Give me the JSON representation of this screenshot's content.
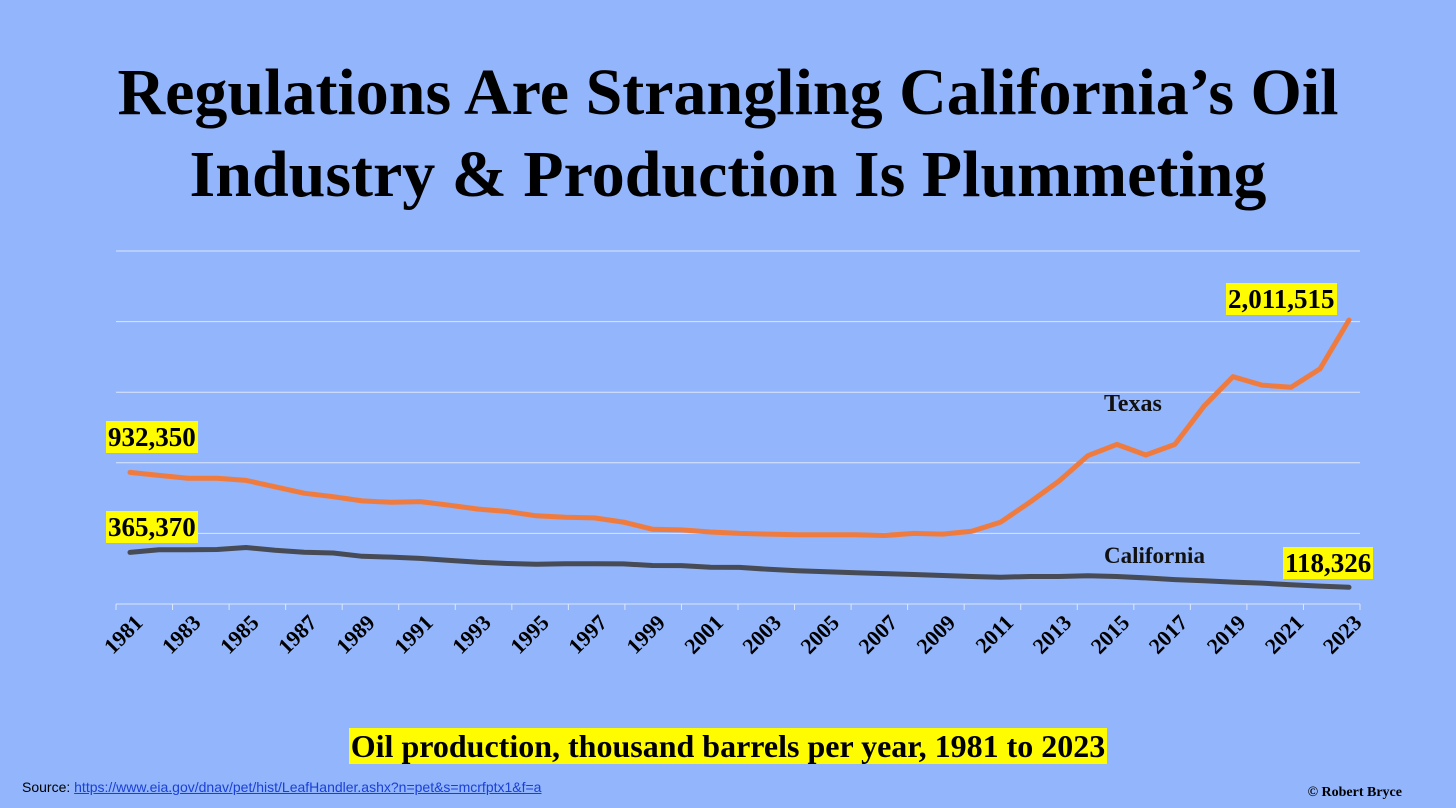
{
  "title_lines": [
    "Regulations Are Strangling California’s Oil",
    "Industry & Production Is Plummeting"
  ],
  "subtitle": "Oil production, thousand barrels per year, 1981 to 2023",
  "source": {
    "label": "Source:",
    "link_text": "https://www.eia.gov/dnav/pet/hist/LeafHandler.ashx?n=pet&s=mcrfptx1&f=a"
  },
  "credit": "© Robert Bryce",
  "colors": {
    "background": "#92b5fb",
    "texas": "#ef7c3e",
    "california": "#474b55",
    "highlight": "#fffb00",
    "grid": "#dce7fd"
  },
  "chart_data": {
    "type": "line",
    "title": "Regulations Are Strangling California’s Oil Industry & Production Is Plummeting",
    "xlabel": "Oil production, thousand barrels per year, 1981 to 2023",
    "ylabel": "",
    "x_tick_labels": [
      "1981",
      "1983",
      "1985",
      "1987",
      "1989",
      "1991",
      "1993",
      "1995",
      "1997",
      "1999",
      "2001",
      "2003",
      "2005",
      "2007",
      "2009",
      "2011",
      "2013",
      "2015",
      "2017",
      "2019",
      "2021",
      "2023"
    ],
    "x": [
      1981,
      1982,
      1983,
      1984,
      1985,
      1986,
      1987,
      1988,
      1989,
      1990,
      1991,
      1992,
      1993,
      1994,
      1995,
      1996,
      1997,
      1998,
      1999,
      2000,
      2001,
      2002,
      2003,
      2004,
      2005,
      2006,
      2007,
      2008,
      2009,
      2010,
      2011,
      2012,
      2013,
      2014,
      2015,
      2016,
      2017,
      2018,
      2019,
      2020,
      2021,
      2022,
      2023
    ],
    "ylim": [
      0,
      2500000
    ],
    "grid": true,
    "series": [
      {
        "name": "Texas",
        "values": [
          932350,
          911000,
          890000,
          890000,
          875000,
          830000,
          785000,
          760000,
          730000,
          720000,
          725000,
          700000,
          672000,
          655000,
          625000,
          615000,
          610000,
          580000,
          530000,
          525000,
          510000,
          500000,
          495000,
          490000,
          490000,
          490000,
          485000,
          500000,
          495000,
          515000,
          580000,
          720000,
          870000,
          1050000,
          1130000,
          1055000,
          1130000,
          1400000,
          1610000,
          1550000,
          1535000,
          1665000,
          2011515
        ]
      },
      {
        "name": "California",
        "values": [
          365370,
          384000,
          384000,
          386000,
          400000,
          380000,
          366000,
          361000,
          338000,
          332000,
          323000,
          309000,
          295000,
          287000,
          281000,
          285000,
          285000,
          284000,
          273000,
          272000,
          260000,
          259000,
          246000,
          236000,
          229000,
          222000,
          215000,
          209000,
          202000,
          195000,
          190000,
          195000,
          195000,
          200000,
          195000,
          185000,
          173000,
          165000,
          155000,
          148000,
          136000,
          127000,
          118326
        ]
      }
    ],
    "annotations": [
      {
        "text": "932,350",
        "series": "Texas",
        "x": 1981
      },
      {
        "text": "365,370",
        "series": "California",
        "x": 1981
      },
      {
        "text": "2,011,515",
        "series": "Texas",
        "x": 2023
      },
      {
        "text": "118,326",
        "series": "California",
        "x": 2023
      }
    ],
    "series_labels": {
      "texas": "Texas",
      "california": "California"
    }
  }
}
